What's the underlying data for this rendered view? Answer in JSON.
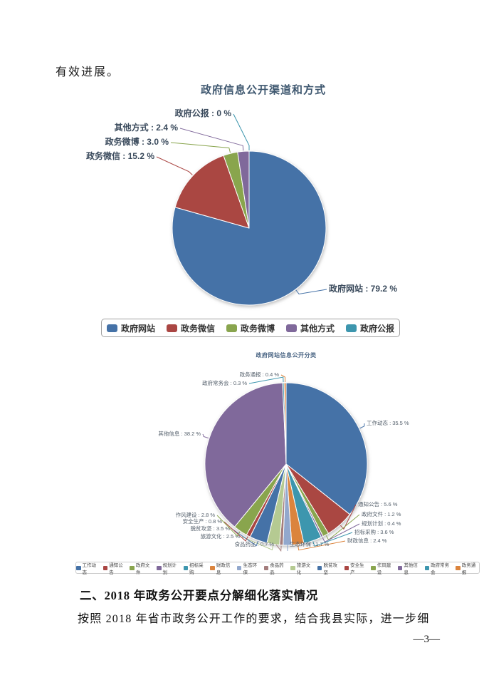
{
  "page": {
    "intro_text": "有效进展。",
    "section_heading": "二、2018 年政务公开要点分解细化落实情况",
    "body_text": "按照 2018 年省市政务公开工作的要求，结合我县实际，进一步细",
    "page_number": "—3—"
  },
  "palette": [
    "#4572A7",
    "#AA4643",
    "#89A54E",
    "#80699B",
    "#3D96AE",
    "#DB843D",
    "#92A8CD",
    "#A47D7C",
    "#B5CA92"
  ],
  "chart_data": [
    {
      "type": "pie",
      "title": "政府信息公开渠道和方式",
      "unit": "%",
      "legend_position": "bottom",
      "label_format": "{name} : {value} %",
      "categories": [
        "政府网站",
        "政务微信",
        "政务微博",
        "其他方式",
        "政府公报"
      ],
      "values": [
        79.2,
        15.2,
        3.0,
        2.4,
        0
      ],
      "display_values": [
        "79.2",
        "15.2",
        "3.0",
        "2.4",
        "0"
      ]
    },
    {
      "type": "pie",
      "title": "政府网站信息公开分类",
      "unit": "%",
      "legend_position": "bottom",
      "label_format": "{name} : {value} %",
      "categories": [
        "工作动态",
        "通知公告",
        "政府文件",
        "规划计划",
        "招标采购",
        "财政信息",
        "生态环保",
        "食品药品",
        "旅游文化",
        "脱贫攻坚",
        "安全生产",
        "作风建设",
        "其他信息",
        "政府常务会",
        "政务通报"
      ],
      "values": [
        35.5,
        5.6,
        1.2,
        0.4,
        3.6,
        2.4,
        1.7,
        0.7,
        2.5,
        3.5,
        0.8,
        2.8,
        38.2,
        0.3,
        0.4
      ],
      "display_values": [
        "35.5",
        "5.6",
        "1.2",
        "0.4",
        "3.6",
        "2.4",
        "1.7",
        "0.7",
        "2.5",
        "3.5",
        "0.8",
        "2.8",
        "38.2",
        "0.3",
        "0.4"
      ]
    }
  ]
}
